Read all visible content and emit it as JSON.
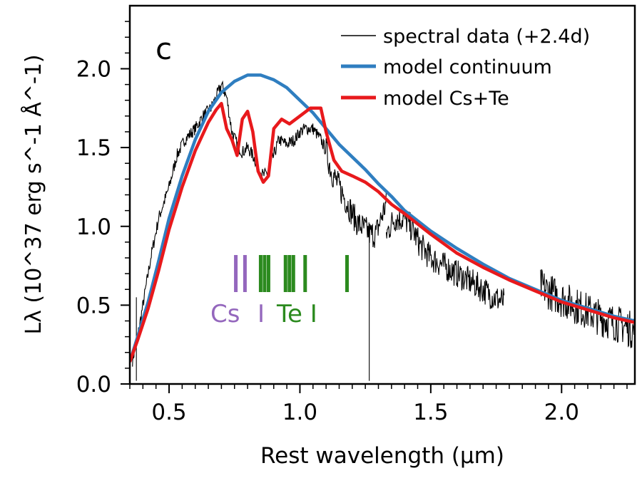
{
  "chart_data": {
    "type": "line",
    "panel_label": "c",
    "xlabel": "Rest wavelength (μm)",
    "ylabel": "Lλ (10^37 erg s^-1 Å^-1)",
    "xlim": [
      0.35,
      2.28
    ],
    "ylim": [
      0.0,
      2.4
    ],
    "x_ticks": [
      0.5,
      1.0,
      1.5,
      2.0
    ],
    "x_tick_labels": [
      "0.5",
      "1.0",
      "1.5",
      "2.0"
    ],
    "y_ticks": [
      0.0,
      0.5,
      1.0,
      1.5,
      2.0
    ],
    "y_tick_labels": [
      "0.0",
      "0.5",
      "1.0",
      "1.5",
      "2.0"
    ],
    "grid": false,
    "legend_position": "top-right",
    "series": [
      {
        "name": "spectral data (+2.4d)",
        "color": "#000000",
        "noisy": true,
        "segments": [
          {
            "x": [
              0.36,
              0.38,
              0.4,
              0.43,
              0.46,
              0.5,
              0.53,
              0.56,
              0.6,
              0.63,
              0.66,
              0.68,
              0.7,
              0.72,
              0.74,
              0.76,
              0.78,
              0.8,
              0.82,
              0.84,
              0.86,
              0.88,
              0.9,
              0.92,
              0.95,
              0.98,
              1.0,
              1.02,
              1.05,
              1.08,
              1.1,
              1.12,
              1.15,
              1.18,
              1.2,
              1.22,
              1.25,
              1.27,
              1.29,
              1.31,
              1.33
            ],
            "y": [
              0.15,
              0.3,
              0.5,
              0.8,
              1.05,
              1.25,
              1.45,
              1.55,
              1.62,
              1.7,
              1.75,
              1.82,
              1.9,
              1.82,
              1.6,
              1.52,
              1.47,
              1.5,
              1.45,
              1.38,
              1.32,
              1.35,
              1.45,
              1.55,
              1.52,
              1.55,
              1.6,
              1.62,
              1.62,
              1.55,
              1.48,
              1.35,
              1.25,
              1.15,
              1.08,
              1.02,
              0.98,
              0.95,
              0.95,
              1.05,
              1.15
            ]
          },
          {
            "x": [
              1.33,
              1.36,
              1.4,
              1.43,
              1.46,
              1.5,
              1.55,
              1.6,
              1.65,
              1.7,
              1.74,
              1.78
            ],
            "y": [
              0.95,
              1.05,
              1.05,
              0.98,
              0.88,
              0.8,
              0.75,
              0.7,
              0.65,
              0.6,
              0.55,
              0.52
            ]
          },
          {
            "x": [
              1.92,
              1.96,
              2.0,
              2.05,
              2.1,
              2.15,
              2.2,
              2.25,
              2.28
            ],
            "y": [
              0.62,
              0.58,
              0.54,
              0.5,
              0.46,
              0.42,
              0.39,
              0.36,
              0.33
            ]
          }
        ],
        "spikes": [
          {
            "x": 0.375,
            "y1": 0.02,
            "y2": 0.55
          },
          {
            "x": 1.265,
            "y1": 0.02,
            "y2": 0.95
          }
        ]
      },
      {
        "name": "model continuum",
        "color": "#2f7ec0",
        "x": [
          0.35,
          0.38,
          0.42,
          0.46,
          0.5,
          0.55,
          0.6,
          0.65,
          0.7,
          0.75,
          0.8,
          0.85,
          0.9,
          0.95,
          1.0,
          1.05,
          1.1,
          1.15,
          1.2,
          1.25,
          1.3,
          1.35,
          1.4,
          1.5,
          1.6,
          1.7,
          1.8,
          1.9,
          2.0,
          2.1,
          2.2,
          2.28
        ],
        "y": [
          0.14,
          0.3,
          0.52,
          0.78,
          1.05,
          1.32,
          1.55,
          1.73,
          1.85,
          1.92,
          1.96,
          1.96,
          1.93,
          1.88,
          1.8,
          1.72,
          1.62,
          1.52,
          1.44,
          1.36,
          1.27,
          1.19,
          1.1,
          0.97,
          0.86,
          0.76,
          0.67,
          0.6,
          0.53,
          0.48,
          0.43,
          0.4
        ]
      },
      {
        "name": "model Cs+Te",
        "color": "#e8191c",
        "x": [
          0.35,
          0.38,
          0.42,
          0.46,
          0.5,
          0.55,
          0.6,
          0.65,
          0.68,
          0.7,
          0.72,
          0.74,
          0.76,
          0.78,
          0.8,
          0.82,
          0.84,
          0.86,
          0.88,
          0.9,
          0.93,
          0.96,
          1.0,
          1.04,
          1.08,
          1.1,
          1.13,
          1.16,
          1.2,
          1.25,
          1.3,
          1.35,
          1.4,
          1.5,
          1.6,
          1.7,
          1.8,
          1.9,
          2.0,
          2.1,
          2.2,
          2.28
        ],
        "y": [
          0.14,
          0.28,
          0.48,
          0.72,
          0.98,
          1.25,
          1.48,
          1.66,
          1.74,
          1.78,
          1.62,
          1.55,
          1.45,
          1.68,
          1.73,
          1.6,
          1.35,
          1.28,
          1.32,
          1.62,
          1.68,
          1.65,
          1.7,
          1.75,
          1.75,
          1.6,
          1.42,
          1.35,
          1.32,
          1.28,
          1.22,
          1.14,
          1.08,
          0.95,
          0.83,
          0.74,
          0.66,
          0.59,
          0.52,
          0.47,
          0.42,
          0.39
        ]
      }
    ],
    "line_markers": [
      {
        "group": "Cs I",
        "color": "#9467bd",
        "x": [
          0.755,
          0.79
        ]
      },
      {
        "group": "Te I",
        "color": "#2b8a1e",
        "x": [
          0.85,
          0.865,
          0.88,
          0.945,
          0.96,
          0.975,
          1.02,
          1.18
        ]
      }
    ],
    "line_labels": [
      {
        "text": "Cs",
        "color": "#9467bd"
      },
      {
        "text": "I",
        "color": "#9467bd"
      },
      {
        "text": "Te I",
        "color": "#2b8a1e"
      }
    ]
  }
}
